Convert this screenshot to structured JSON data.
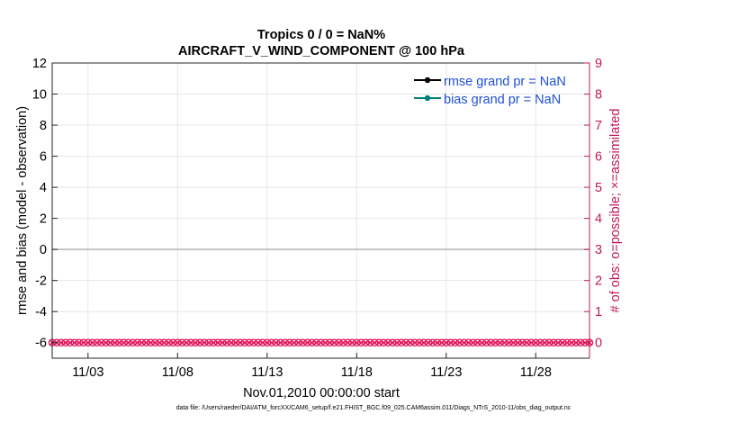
{
  "chart_data": {
    "type": "line",
    "title": "Tropics 0 / 0 = NaN%",
    "subtitle": "AIRCRAFT_V_WIND_COMPONENT @ 100 hPa",
    "xlabel": "Nov.01,2010 00:00:00 start",
    "ylabel": "rmse and bias (model - observation)",
    "y2label": "# of obs: o=possible; ×=assimilated",
    "x_tick_labels": [
      "11/03",
      "11/08",
      "11/13",
      "11/18",
      "11/23",
      "11/28"
    ],
    "x_tick_days": [
      3,
      8,
      13,
      18,
      23,
      28
    ],
    "xlim_days": [
      1,
      31
    ],
    "ylim": [
      -7,
      12
    ],
    "y_ticks": [
      -6,
      -4,
      -2,
      0,
      2,
      4,
      6,
      8,
      10,
      12
    ],
    "y2lim": [
      -0.5,
      9
    ],
    "y2_ticks": [
      0,
      1,
      2,
      3,
      4,
      5,
      6,
      7,
      8,
      9
    ],
    "zero_line": 0,
    "grid": true,
    "legend_location": "top-right",
    "series": [
      {
        "name": "rmse grand pr = NaN",
        "color": "#000000",
        "values": []
      },
      {
        "name": "bias grand pr = NaN",
        "color": "#008080",
        "values": []
      },
      {
        "name": "obs possible",
        "color": "#e3165b",
        "marker": "o",
        "axis": "right",
        "value": 0
      },
      {
        "name": "obs assimilated",
        "color": "#e3165b",
        "marker": "x",
        "axis": "right",
        "value": 0
      }
    ],
    "obs_points_per_day": 4,
    "colors": {
      "left_axis": "#000000",
      "right_axis": "#c2185b",
      "obs": "#e3165b",
      "legend_text": "#1f4fd6",
      "grid": "#e6e6e6",
      "zero_line": "#b3b3b3"
    }
  },
  "footer": {
    "data_file": "data file: /Users/raeder/DAI/ATM_forcXX/CAM6_setup/f.e21.FHIST_BGC.f09_025.CAM6assim.011/Diags_NTrS_2010-11/obs_diag_output.nc"
  }
}
